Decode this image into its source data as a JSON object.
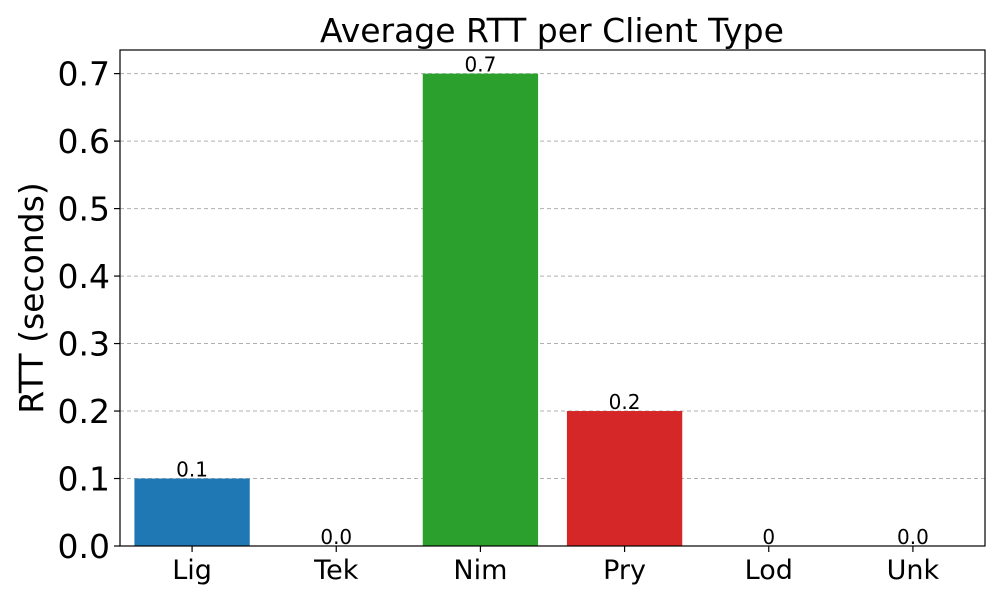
{
  "chart_data": {
    "type": "bar",
    "title": "Average RTT per Client Type",
    "xlabel": "",
    "ylabel": "RTT (seconds)",
    "categories": [
      "Lig",
      "Tek",
      "Nim",
      "Pry",
      "Lod",
      "Unk"
    ],
    "values": [
      0.1,
      0.0,
      0.7,
      0.2,
      0,
      0.0
    ],
    "data_labels": [
      "0.1",
      "0.0",
      "0.7",
      "0.2",
      "0",
      "0.0"
    ],
    "colors": [
      "#1f77b4",
      "#ff7f0e",
      "#2ca02c",
      "#d62728",
      "#9467bd",
      "#8c564b"
    ],
    "ylim": [
      0,
      0.735
    ],
    "yticks": [
      0.0,
      0.1,
      0.2,
      0.3,
      0.4,
      0.5,
      0.6,
      0.7
    ],
    "ytick_labels": [
      "0.0",
      "0.1",
      "0.2",
      "0.3",
      "0.4",
      "0.5",
      "0.6",
      "0.7"
    ],
    "grid": "y-dashed",
    "legend": "none"
  }
}
